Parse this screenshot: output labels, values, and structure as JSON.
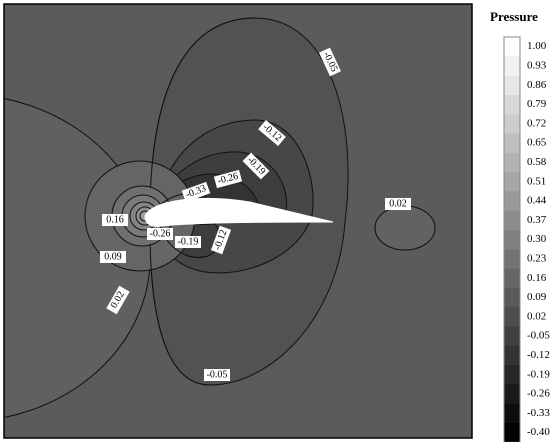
{
  "chart_data": {
    "type": "contour",
    "legend_title": "Pressure",
    "levels": [
      {
        "value": 1,
        "label": "1.00"
      },
      0.93,
      0.86,
      0.79,
      0.72,
      0.65,
      0.58,
      0.51,
      0.44,
      0.37,
      {
        "value": 0.3,
        "label": "0.30"
      },
      0.23,
      0.16,
      0.09,
      0.02,
      -0.05,
      -0.12,
      -0.19,
      -0.26,
      -0.33,
      {
        "value": -0.4,
        "label": "-0.40"
      }
    ],
    "colors": [
      "#000000",
      "#ffffff"
    ],
    "contour_labels": [
      -0.05,
      -0.12,
      -0.19,
      -0.26,
      -0.33,
      0.16,
      -0.26,
      -0.19,
      -0.12,
      0.09,
      0.02,
      -0.05,
      0.02
    ]
  }
}
